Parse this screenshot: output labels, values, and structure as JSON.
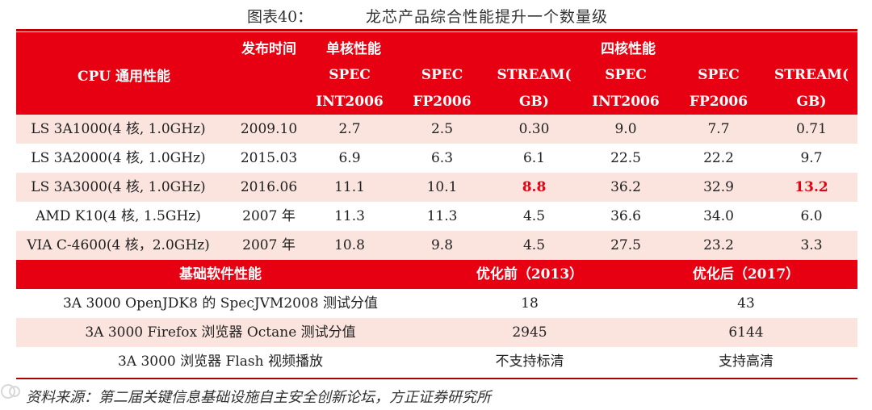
{
  "title": {
    "label": "图表40：",
    "text": "龙芯产品综合性能提升一个数量级"
  },
  "header": {
    "cpu": "CPU 通用性能",
    "date": "发布时间",
    "single": "单核性能",
    "quad": "四核性能",
    "cols": [
      [
        "SPEC",
        "INT2006"
      ],
      [
        "SPEC",
        "FP2006"
      ],
      [
        "STREAM(",
        "GB)"
      ],
      [
        "SPEC",
        "INT2006"
      ],
      [
        "SPEC",
        "FP2006"
      ],
      [
        "STREAM(",
        "GB)"
      ]
    ]
  },
  "rows": [
    [
      "LS 3A1000(4 核, 1.0GHz)",
      "2009.10",
      "2.7",
      "2.5",
      "0.30",
      "9.0",
      "7.7",
      "0.71"
    ],
    [
      "LS 3A2000(4 核, 1.0GHz)",
      "2015.03",
      "6.9",
      "6.3",
      "6.1",
      "22.5",
      "22.2",
      "9.7"
    ],
    [
      "LS 3A3000(4 核, 1.0GHz)",
      "2016.06",
      "11.1",
      "10.1",
      "8.8",
      "36.2",
      "32.9",
      "13.2"
    ],
    [
      "AMD K10(4 核, 1.5GHz)",
      "2007 年",
      "11.3",
      "11.3",
      "4.5",
      "36.6",
      "34.0",
      "6.0"
    ],
    [
      "VIA C-4600(4 核，2.0GHz)",
      "2007 年",
      "10.8",
      "9.8",
      "4.5",
      "27.5",
      "23.2",
      "3.3"
    ]
  ],
  "software": {
    "header": {
      "label": "基础软件性能",
      "before": "优化前（2013）",
      "after": "优化后（2017）"
    },
    "rows": [
      [
        "3A 3000 OpenJDK8 的 SpecJVM2008 测试分值",
        "18",
        "43"
      ],
      [
        "3A 3000 Firefox 浏览器 Octane 测试分值",
        "2945",
        "6144"
      ],
      [
        "3A 3000  浏览器 Flash 视频播放",
        "不支持标清",
        "支持高清"
      ]
    ]
  },
  "source": "资料来源：第二届关键信息基础设施自主安全创新论坛，方正证券研究所",
  "colors": {
    "accent": "#e60012",
    "stripe": "#fbe3de"
  }
}
